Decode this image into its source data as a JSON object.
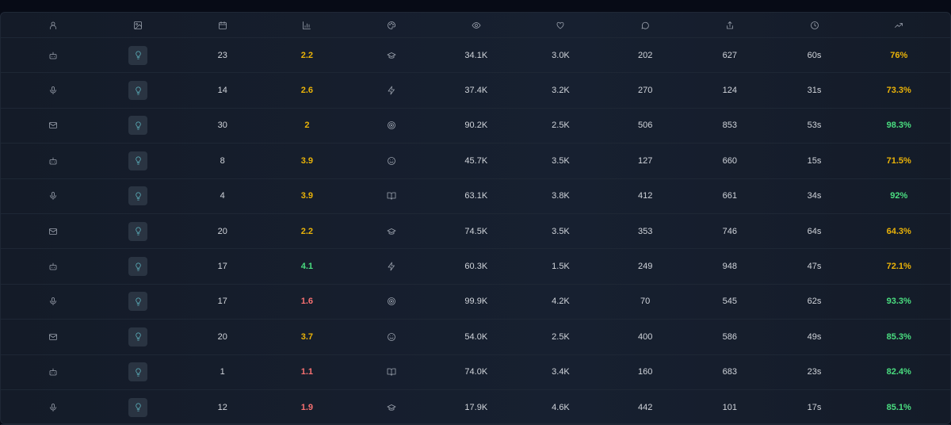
{
  "header": {
    "columns": [
      "user-icon",
      "image-icon",
      "calendar-icon",
      "bar-chart-icon",
      "palette-icon",
      "eye-icon",
      "heart-icon",
      "message-icon",
      "share-icon",
      "clock-icon",
      "trending-up-icon"
    ]
  },
  "colors": {
    "yellow": "#eab308",
    "green": "#4ade80",
    "red": "#f87171"
  },
  "rows": [
    {
      "type": "bot",
      "thumb": "lightbulb",
      "num": "23",
      "rating": "2.2",
      "rc": "yellow",
      "cat": "graduation-cap",
      "views": "34.1K",
      "likes": "3.0K",
      "comments": "202",
      "shares": "627",
      "time": "60s",
      "pct": "76%",
      "pc": "yellow"
    },
    {
      "type": "mic",
      "thumb": "lightbulb",
      "num": "14",
      "rating": "2.6",
      "rc": "yellow",
      "cat": "zap",
      "views": "37.4K",
      "likes": "3.2K",
      "comments": "270",
      "shares": "124",
      "time": "31s",
      "pct": "73.3%",
      "pc": "yellow"
    },
    {
      "type": "mail",
      "thumb": "lightbulb",
      "num": "30",
      "rating": "2",
      "rc": "yellow",
      "cat": "target",
      "views": "90.2K",
      "likes": "2.5K",
      "comments": "506",
      "shares": "853",
      "time": "53s",
      "pct": "98.3%",
      "pc": "green"
    },
    {
      "type": "bot",
      "thumb": "lightbulb",
      "num": "8",
      "rating": "3.9",
      "rc": "yellow",
      "cat": "smile",
      "views": "45.7K",
      "likes": "3.5K",
      "comments": "127",
      "shares": "660",
      "time": "15s",
      "pct": "71.5%",
      "pc": "yellow"
    },
    {
      "type": "mic",
      "thumb": "lightbulb",
      "num": "4",
      "rating": "3.9",
      "rc": "yellow",
      "cat": "book",
      "views": "63.1K",
      "likes": "3.8K",
      "comments": "412",
      "shares": "661",
      "time": "34s",
      "pct": "92%",
      "pc": "green"
    },
    {
      "type": "mail",
      "thumb": "lightbulb",
      "num": "20",
      "rating": "2.2",
      "rc": "yellow",
      "cat": "graduation-cap",
      "views": "74.5K",
      "likes": "3.5K",
      "comments": "353",
      "shares": "746",
      "time": "64s",
      "pct": "64.3%",
      "pc": "yellow"
    },
    {
      "type": "bot",
      "thumb": "lightbulb",
      "num": "17",
      "rating": "4.1",
      "rc": "green",
      "cat": "zap",
      "views": "60.3K",
      "likes": "1.5K",
      "comments": "249",
      "shares": "948",
      "time": "47s",
      "pct": "72.1%",
      "pc": "yellow"
    },
    {
      "type": "mic",
      "thumb": "lightbulb",
      "num": "17",
      "rating": "1.6",
      "rc": "red",
      "cat": "target",
      "views": "99.9K",
      "likes": "4.2K",
      "comments": "70",
      "shares": "545",
      "time": "62s",
      "pct": "93.3%",
      "pc": "green"
    },
    {
      "type": "mail",
      "thumb": "lightbulb",
      "num": "20",
      "rating": "3.7",
      "rc": "yellow",
      "cat": "smile",
      "views": "54.0K",
      "likes": "2.5K",
      "comments": "400",
      "shares": "586",
      "time": "49s",
      "pct": "85.3%",
      "pc": "green"
    },
    {
      "type": "bot",
      "thumb": "lightbulb",
      "num": "1",
      "rating": "1.1",
      "rc": "red",
      "cat": "book",
      "views": "74.0K",
      "likes": "3.4K",
      "comments": "160",
      "shares": "683",
      "time": "23s",
      "pct": "82.4%",
      "pc": "green"
    },
    {
      "type": "mic",
      "thumb": "lightbulb",
      "num": "12",
      "rating": "1.9",
      "rc": "red",
      "cat": "graduation-cap",
      "views": "17.9K",
      "likes": "4.6K",
      "comments": "442",
      "shares": "101",
      "time": "17s",
      "pct": "85.1%",
      "pc": "green"
    }
  ]
}
